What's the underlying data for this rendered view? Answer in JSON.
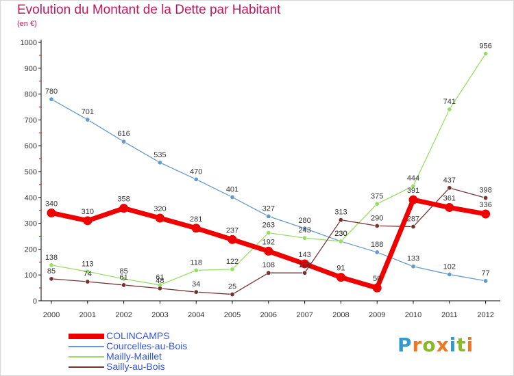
{
  "title": "Evolution du Montant de la Dette par Habitant",
  "subtitle": "(en €)",
  "logo": {
    "letters": [
      "P",
      "r",
      "o",
      "x",
      "i",
      "t",
      "i"
    ],
    "colors": [
      "#3399cc",
      "#ee7722",
      "#88bb22",
      "#ee7722",
      "#3399cc",
      "#88bb22",
      "#ee7722"
    ]
  },
  "chart_data": {
    "type": "line",
    "title": "Evolution du Montant de la Dette par Habitant",
    "subtitle": "(en €)",
    "x": [
      "2000",
      "2001",
      "2002",
      "2003",
      "2004",
      "2005",
      "2006",
      "2007",
      "2008",
      "2009",
      "2010",
      "2011",
      "2012"
    ],
    "ylim": [
      0,
      1000
    ],
    "yticks": [
      "0",
      "100",
      "200",
      "300",
      "400",
      "500",
      "600",
      "700",
      "800",
      "900",
      "1000"
    ],
    "grid": false,
    "legend_position": "bottom-left",
    "series": [
      {
        "name": "COLINCAMPS",
        "color": "#ee0000",
        "emphasis": "thick",
        "values": [
          340,
          310,
          358,
          320,
          281,
          237,
          192,
          143,
          91,
          50,
          391,
          361,
          336
        ]
      },
      {
        "name": "Courcelles-au-Bois",
        "color": "#6699cc",
        "emphasis": "thin",
        "values": [
          780,
          701,
          616,
          535,
          470,
          401,
          327,
          280,
          230,
          188,
          133,
          102,
          77
        ]
      },
      {
        "name": "Mailly-Maillet",
        "color": "#99dd66",
        "emphasis": "thin",
        "values": [
          138,
          113,
          85,
          61,
          118,
          122,
          263,
          243,
          230,
          375,
          444,
          741,
          956
        ]
      },
      {
        "name": "Sailly-au-Bois",
        "color": "#773333",
        "emphasis": "thin",
        "values": [
          85,
          74,
          61,
          48,
          34,
          25,
          108,
          108,
          313,
          290,
          287,
          437,
          398
        ]
      }
    ]
  }
}
